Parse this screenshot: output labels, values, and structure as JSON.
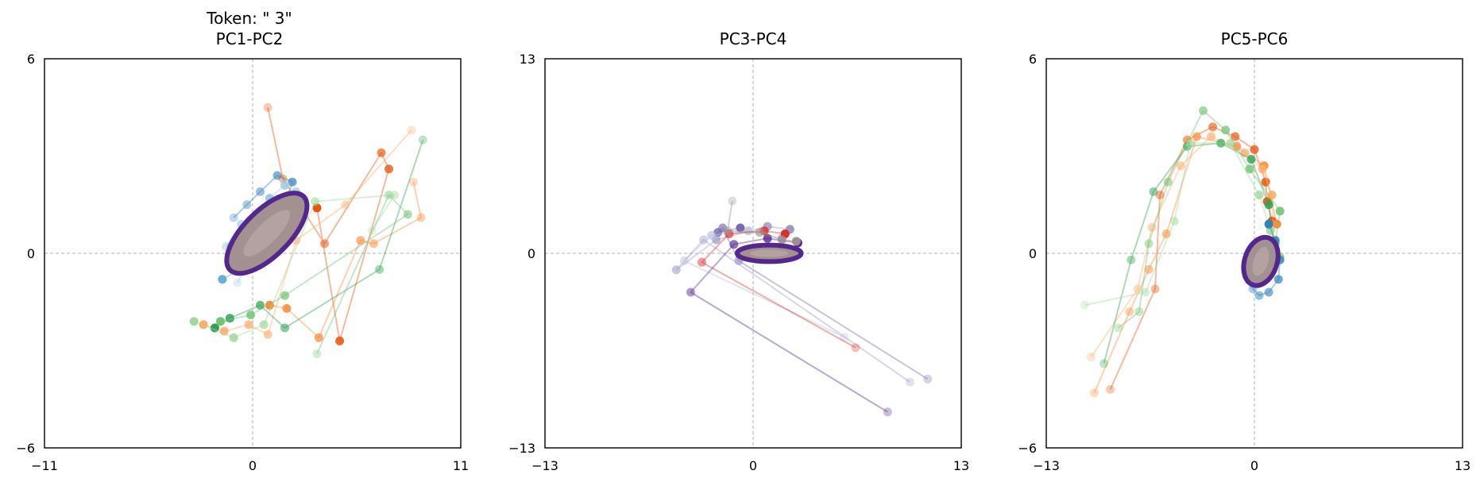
{
  "figure": {
    "suptitle": "Token: \" 3\"",
    "colors": [
      "#e6550d",
      "#fd8d3c",
      "#fdae6b",
      "#31a354",
      "#74c476",
      "#a1d99b",
      "#3182bd",
      "#6baed6",
      "#9ecae1",
      "#756bb1",
      "#9e9ac8",
      "#bcbddc",
      "#de2d26",
      "#54278f",
      "#a08f8f"
    ],
    "core_color": "#a39190",
    "core_outline": "#54278f"
  },
  "chart_data": [
    {
      "type": "scatter",
      "title": "PC1-PC2",
      "xlim": [
        -11,
        11
      ],
      "ylim": [
        -6,
        6
      ],
      "xticks": [
        -11,
        0,
        11
      ],
      "yticks": [
        -6,
        0,
        6
      ],
      "xtick_labels": [
        "−11",
        "0",
        "11"
      ],
      "ytick_labels": [
        "−6",
        "0",
        "6"
      ],
      "grid": false,
      "reference_lines": "dashed zero lines",
      "core": {
        "type": "ellipse",
        "center": [
          0.75,
          0.62
        ],
        "rx": 2.75,
        "ry": 0.7,
        "angle_deg": 45
      },
      "series": [
        {
          "points": [
            [
              0.8,
              4.5
            ],
            [
              1.6,
              2.3
            ],
            [
              3.8,
              0.3
            ],
            [
              6.8,
              3.1
            ],
            [
              7.2,
              2.6
            ],
            [
              4.6,
              -2.7
            ],
            [
              3.4,
              1.4
            ]
          ]
        },
        {
          "points": [
            [
              8.5,
              2.2
            ],
            [
              8.9,
              1.1
            ],
            [
              6.4,
              0.3
            ],
            [
              5.7,
              0.4
            ],
            [
              3.5,
              -2.6
            ],
            [
              1.8,
              -1.7
            ],
            [
              0.9,
              -1.6
            ]
          ]
        },
        {
          "points": [
            [
              8.4,
              3.8
            ],
            [
              4.9,
              1.5
            ],
            [
              2.3,
              0.4
            ],
            [
              0.8,
              -2.5
            ],
            [
              -0.2,
              -2.2
            ],
            [
              -1.5,
              -2.4
            ],
            [
              -2.6,
              -2.2
            ]
          ]
        },
        {
          "points": [
            [
              9.0,
              3.5
            ],
            [
              6.7,
              -0.5
            ],
            [
              1.7,
              -2.3
            ],
            [
              0.4,
              -1.6
            ],
            [
              -1.2,
              -2.0
            ],
            [
              -2.0,
              -2.3
            ]
          ]
        },
        {
          "points": [
            [
              3.4,
              -3.1
            ],
            [
              7.2,
              1.8
            ],
            [
              8.2,
              1.2
            ],
            [
              1.7,
              -1.3
            ],
            [
              -0.1,
              -1.9
            ],
            [
              -1.7,
              -2.1
            ]
          ]
        },
        {
          "points": [
            [
              6.3,
              0.7
            ],
            [
              7.5,
              1.8
            ],
            [
              3.3,
              1.6
            ],
            [
              0.6,
              -2.2
            ],
            [
              -1.0,
              -2.6
            ],
            [
              -3.1,
              -2.1
            ]
          ]
        },
        {
          "points": [
            [
              -1.0,
              1.1
            ],
            [
              -0.3,
              1.5
            ],
            [
              0.4,
              1.9
            ],
            [
              1.3,
              2.4
            ],
            [
              2.1,
              2.2
            ],
            [
              1.5,
              1.2
            ],
            [
              0.2,
              0.4
            ],
            [
              -0.9,
              -0.3
            ]
          ]
        },
        {
          "points": [
            [
              -1.4,
              0.2
            ],
            [
              -0.6,
              0.9
            ],
            [
              0.5,
              1.1
            ],
            [
              1.8,
              1.6
            ],
            [
              0.9,
              0.6
            ],
            [
              -0.4,
              -0.4
            ],
            [
              -1.6,
              -0.8
            ]
          ]
        },
        {
          "points": [
            [
              -0.8,
              -0.9
            ],
            [
              0.2,
              0.1
            ],
            [
              1.1,
              0.8
            ],
            [
              2.3,
              1.9
            ],
            [
              1.7,
              2.1
            ],
            [
              0.9,
              1.7
            ]
          ]
        }
      ]
    },
    {
      "type": "scatter",
      "title": "PC3-PC4",
      "xlim": [
        -13,
        13
      ],
      "ylim": [
        -13,
        13
      ],
      "xticks": [
        -13,
        0,
        13
      ],
      "yticks": [
        -13,
        0,
        13
      ],
      "xtick_labels": [
        "−13",
        "0",
        "13"
      ],
      "ytick_labels": [
        "−13",
        "0",
        "13"
      ],
      "grid": false,
      "reference_lines": "dashed zero lines",
      "core": {
        "type": "ellipse",
        "center": [
          1.0,
          0.0
        ],
        "rx": 2.0,
        "ry": 0.55,
        "angle_deg": 0
      },
      "series": [
        {
          "points": [
            [
              10.9,
              -8.4
            ],
            [
              -0.9,
              -0.5
            ],
            [
              -1.9,
              1.7
            ],
            [
              -2.2,
              1.4
            ],
            [
              -0.8,
              1.7
            ]
          ]
        },
        {
          "points": [
            [
              9.8,
              -8.6
            ],
            [
              -3.1,
              0.9
            ],
            [
              -4.8,
              -1.1
            ],
            [
              -2.3,
              0.9
            ],
            [
              0.9,
              1.8
            ],
            [
              2.3,
              1.6
            ]
          ]
        },
        {
          "points": [
            [
              5.7,
              -5.6
            ],
            [
              -4.3,
              -0.5
            ],
            [
              -2.6,
              1.2
            ],
            [
              -0.3,
              1.5
            ],
            [
              1.8,
              1.0
            ]
          ]
        },
        {
          "points": [
            [
              6.4,
              -6.3
            ],
            [
              -3.2,
              -0.6
            ],
            [
              -1.5,
              1.3
            ],
            [
              0.7,
              1.5
            ],
            [
              2.0,
              1.3
            ]
          ]
        },
        {
          "points": [
            [
              8.4,
              -10.6
            ],
            [
              -3.9,
              -2.6
            ],
            [
              -1.2,
              0.6
            ],
            [
              0.9,
              1.0
            ],
            [
              2.8,
              0.7
            ]
          ]
        },
        {
          "points": [
            [
              -1.3,
              3.5
            ],
            [
              -1.6,
              1.5
            ],
            [
              0.4,
              1.4
            ],
            [
              1.8,
              0.9
            ],
            [
              2.7,
              0.8
            ]
          ]
        }
      ]
    },
    {
      "type": "scatter",
      "title": "PC5-PC6",
      "xlim": [
        -13,
        13
      ],
      "ylim": [
        -6,
        6
      ],
      "xticks": [
        -13,
        0,
        13
      ],
      "yticks": [
        -6,
        0,
        6
      ],
      "xtick_labels": [
        "−13",
        "0",
        "13"
      ],
      "ytick_labels": [
        "−6",
        "0",
        "6"
      ],
      "grid": false,
      "reference_lines": "dashed zero lines",
      "core": {
        "type": "ellipse",
        "center": [
          0.4,
          -0.25
        ],
        "rx": 1.55,
        "ry": 0.5,
        "angle_deg": 72
      },
      "series": [
        {
          "points": [
            [
              -9.0,
              -4.2
            ],
            [
              -6.2,
              -1.1
            ],
            [
              -5.9,
              1.8
            ],
            [
              -4.2,
              3.5
            ],
            [
              -2.6,
              3.9
            ],
            [
              -1.2,
              3.6
            ],
            [
              0.0,
              3.2
            ],
            [
              0.7,
              2.2
            ],
            [
              0.8,
              1.6
            ],
            [
              1.1,
              1.0
            ]
          ]
        },
        {
          "points": [
            [
              -10.0,
              -4.3
            ],
            [
              -7.8,
              -1.8
            ],
            [
              -6.6,
              -0.5
            ],
            [
              -5.5,
              0.6
            ],
            [
              -3.6,
              3.6
            ],
            [
              -1.1,
              3.3
            ],
            [
              0.6,
              2.7
            ],
            [
              1.4,
              0.9
            ]
          ]
        },
        {
          "points": [
            [
              -10.2,
              -3.2
            ],
            [
              -7.3,
              -1.1
            ],
            [
              -6.4,
              0.8
            ],
            [
              -4.6,
              2.7
            ],
            [
              -2.7,
              3.6
            ],
            [
              -0.6,
              3.1
            ],
            [
              0.5,
              2.6
            ],
            [
              1.1,
              1.8
            ],
            [
              1.2,
              0.2
            ]
          ]
        },
        {
          "points": [
            [
              -9.4,
              -3.4
            ],
            [
              -7.7,
              -0.2
            ],
            [
              -6.3,
              1.9
            ],
            [
              -4.2,
              3.3
            ],
            [
              -2.1,
              3.4
            ],
            [
              -0.2,
              2.9
            ],
            [
              0.9,
              1.5
            ],
            [
              1.3,
              -0.1
            ]
          ]
        },
        {
          "points": [
            [
              -8.5,
              -2.3
            ],
            [
              -7.2,
              -1.8
            ],
            [
              -6.6,
              0.3
            ],
            [
              -5.4,
              2.2
            ],
            [
              -3.2,
              4.4
            ],
            [
              -1.8,
              3.8
            ],
            [
              -0.3,
              2.6
            ],
            [
              1.6,
              1.3
            ],
            [
              1.3,
              0.3
            ]
          ]
        },
        {
          "points": [
            [
              -10.6,
              -1.6
            ],
            [
              -6.8,
              -1.2
            ],
            [
              -5.0,
              1.0
            ],
            [
              -4.0,
              3.4
            ],
            [
              -1.5,
              3.4
            ],
            [
              0.3,
              1.8
            ],
            [
              1.0,
              0.7
            ],
            [
              1.6,
              -0.1
            ]
          ]
        },
        {
          "points": [
            [
              -0.5,
              -0.7
            ],
            [
              -0.1,
              -1.1
            ],
            [
              0.3,
              -1.3
            ],
            [
              0.9,
              -1.2
            ],
            [
              1.5,
              -0.8
            ],
            [
              1.6,
              -0.2
            ],
            [
              1.3,
              0.4
            ],
            [
              0.9,
              0.9
            ]
          ]
        }
      ]
    }
  ]
}
